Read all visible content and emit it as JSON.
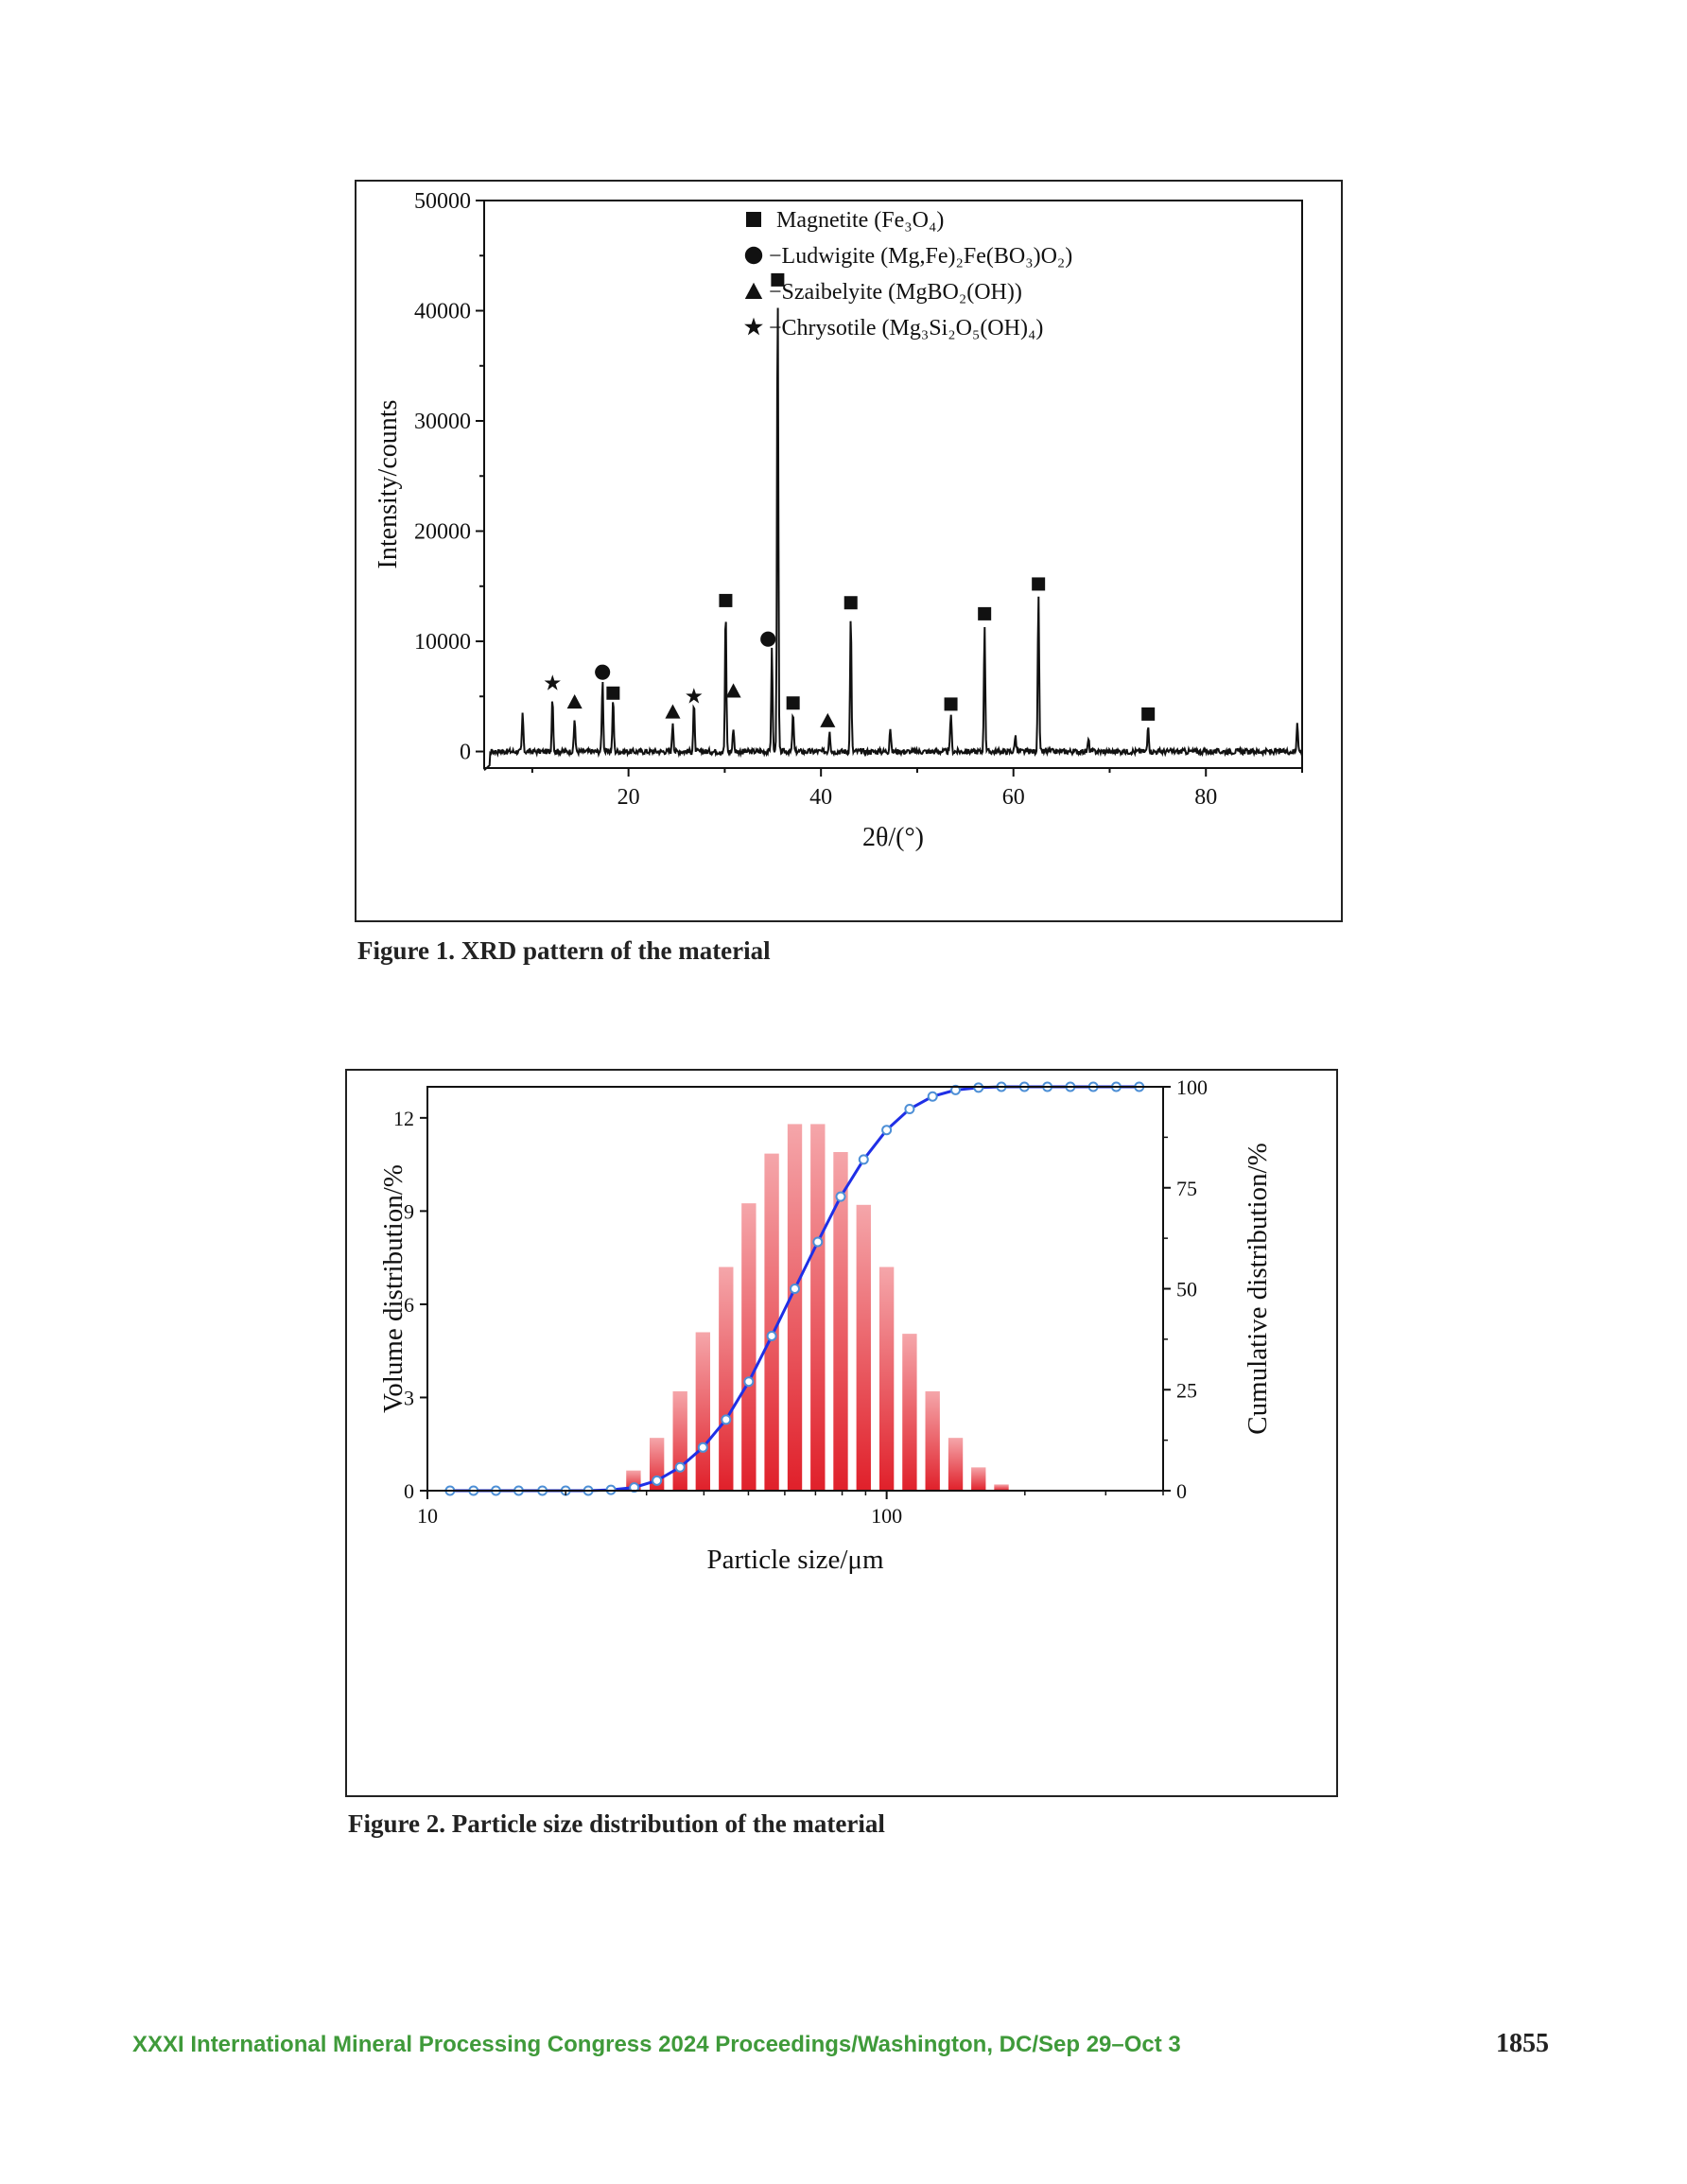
{
  "figure1": {
    "caption": "Figure 1. XRD pattern of the material",
    "chart_data": {
      "type": "line",
      "xlabel": "2θ/(°)",
      "ylabel": "Intensity/counts",
      "xlim": [
        5,
        90
      ],
      "ylim": [
        -1500,
        50000
      ],
      "xticks": [
        20,
        40,
        60,
        80
      ],
      "yticks": [
        0,
        10000,
        20000,
        30000,
        40000,
        50000
      ],
      "grid": false,
      "legend_position": "top-right",
      "legend": [
        {
          "marker": "square",
          "label": "Magnetite (Fe₃O₄)"
        },
        {
          "marker": "circle",
          "label": "−Ludwigite (Mg,Fe)₂Fe(BO₃)O₂)"
        },
        {
          "marker": "triangle",
          "label": "−Szaibelyite (MgBO₂(OH))"
        },
        {
          "marker": "star",
          "label": "−Chrysotile (Mg₃Si₂O₅(OH)₄)"
        }
      ],
      "baseline": 0,
      "peaks": [
        {
          "x": 9.0,
          "y": 3500
        },
        {
          "x": 12.1,
          "y": 5000
        },
        {
          "x": 14.4,
          "y": 3000
        },
        {
          "x": 17.3,
          "y": 6500
        },
        {
          "x": 18.4,
          "y": 4700
        },
        {
          "x": 24.6,
          "y": 2700
        },
        {
          "x": 26.8,
          "y": 4300
        },
        {
          "x": 30.1,
          "y": 12800
        },
        {
          "x": 30.9,
          "y": 2200
        },
        {
          "x": 34.9,
          "y": 9300
        },
        {
          "x": 35.5,
          "y": 41800
        },
        {
          "x": 37.1,
          "y": 3500
        },
        {
          "x": 40.9,
          "y": 2000
        },
        {
          "x": 43.1,
          "y": 12500
        },
        {
          "x": 47.2,
          "y": 2200
        },
        {
          "x": 53.5,
          "y": 3500
        },
        {
          "x": 57.0,
          "y": 11500
        },
        {
          "x": 60.2,
          "y": 1500
        },
        {
          "x": 62.6,
          "y": 14300
        },
        {
          "x": 67.8,
          "y": 1100
        },
        {
          "x": 74.0,
          "y": 2500
        },
        {
          "x": 89.5,
          "y": 2800
        }
      ],
      "markers": [
        {
          "x": 12.1,
          "y": 6200,
          "type": "star"
        },
        {
          "x": 14.4,
          "y": 4500,
          "type": "triangle"
        },
        {
          "x": 17.3,
          "y": 7200,
          "type": "circle"
        },
        {
          "x": 18.4,
          "y": 5300,
          "type": "square"
        },
        {
          "x": 24.6,
          "y": 3600,
          "type": "triangle"
        },
        {
          "x": 26.8,
          "y": 5000,
          "type": "star"
        },
        {
          "x": 30.1,
          "y": 13700,
          "type": "square"
        },
        {
          "x": 30.9,
          "y": 5500,
          "type": "triangle"
        },
        {
          "x": 34.5,
          "y": 10200,
          "type": "circle"
        },
        {
          "x": 35.5,
          "y": 42800,
          "type": "square"
        },
        {
          "x": 37.1,
          "y": 4400,
          "type": "square"
        },
        {
          "x": 40.7,
          "y": 2800,
          "type": "triangle"
        },
        {
          "x": 43.1,
          "y": 13500,
          "type": "square"
        },
        {
          "x": 53.5,
          "y": 4300,
          "type": "square"
        },
        {
          "x": 57.0,
          "y": 12500,
          "type": "square"
        },
        {
          "x": 62.6,
          "y": 15200,
          "type": "square"
        },
        {
          "x": 74.0,
          "y": 3400,
          "type": "square"
        }
      ]
    }
  },
  "figure2": {
    "caption": "Figure 2. Particle size distribution of the material",
    "chart_data": {
      "type": "bar",
      "xlabel": "Particle size/μm",
      "ylabel": "Volume distribution/%",
      "y2label": "Cumulative distribution/%",
      "x_scale": "log",
      "xlim": [
        10,
        400
      ],
      "ylim": [
        0,
        13
      ],
      "y2lim": [
        0,
        100
      ],
      "xtick_labels": [
        "10",
        "100"
      ],
      "yticks": [
        0,
        3,
        6,
        9,
        12
      ],
      "y2ticks": [
        0,
        25,
        50,
        75,
        100
      ],
      "bar_color": "#e0202a",
      "line_color": "#1f2fe6",
      "marker_color": "#4d8fd6",
      "bars": {
        "x": [
          28.1,
          31.6,
          35.5,
          39.8,
          44.7,
          50.1,
          56.2,
          63.1,
          70.8,
          79.4,
          89.1,
          100,
          112.2,
          125.9,
          141.3,
          158.5,
          177.8
        ],
        "values": [
          0.65,
          1.7,
          3.2,
          5.1,
          7.2,
          9.25,
          10.85,
          11.8,
          11.8,
          10.9,
          9.2,
          7.2,
          5.05,
          3.2,
          1.7,
          0.75,
          0.2
        ]
      },
      "cumulative": {
        "x": [
          11.2,
          12.6,
          14.1,
          15.8,
          17.8,
          20.0,
          22.4,
          25.1,
          28.2,
          31.6,
          35.5,
          39.8,
          44.7,
          50.1,
          56.2,
          63.1,
          70.8,
          79.4,
          89.1,
          100,
          112.2,
          125.9,
          141.3,
          158.5,
          177.8,
          199.5,
          223.9,
          251.2,
          281.8,
          316.2,
          354.8
        ],
        "values": [
          0,
          0,
          0,
          0,
          0,
          0,
          0,
          0.2,
          0.8,
          2.5,
          5.8,
          10.7,
          17.6,
          27.0,
          38.3,
          50.0,
          61.6,
          72.8,
          82.0,
          89.3,
          94.5,
          97.6,
          99.2,
          99.8,
          100,
          100,
          100,
          100,
          100,
          100,
          100
        ]
      }
    }
  },
  "footer": {
    "left": "XXXI International Mineral Processing Congress 2024 Proceedings/Washington, DC/Sep 29–Oct 3",
    "page_number": "1855"
  }
}
